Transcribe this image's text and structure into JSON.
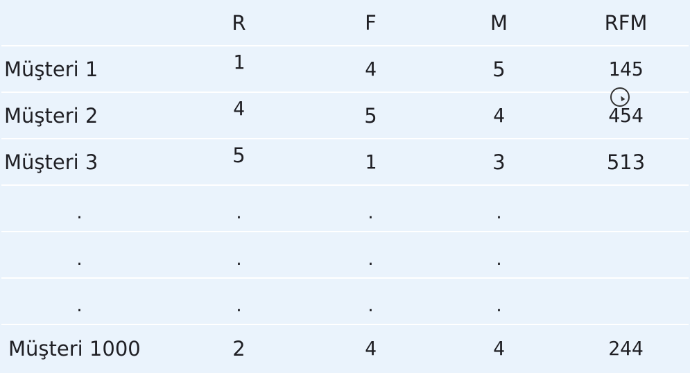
{
  "headers": [
    "",
    "R",
    "F",
    "M",
    "RFM"
  ],
  "rows": [
    {
      "label": "Müşteri 1",
      "r": "1",
      "f": "4",
      "m": "5",
      "rfm": "145"
    },
    {
      "label": "Müşteri 2",
      "r": "4",
      "f": "5",
      "m": "4",
      "rfm": "454"
    },
    {
      "label": "Müşteri 3",
      "r": "5",
      "f": "1",
      "m": "3",
      "rfm": "513"
    },
    {
      "label": ".",
      "r": ".",
      "f": ".",
      "m": ".",
      "rfm": ""
    },
    {
      "label": ".",
      "r": ".",
      "f": ".",
      "m": ".",
      "rfm": ""
    },
    {
      "label": ".",
      "r": ".",
      "f": ".",
      "m": ".",
      "rfm": ""
    },
    {
      "label": "Müşteri 1000",
      "r": "2",
      "f": "4",
      "m": "4",
      "rfm": "244"
    }
  ],
  "cursor": {
    "icon": "mouse-cursor-icon"
  }
}
